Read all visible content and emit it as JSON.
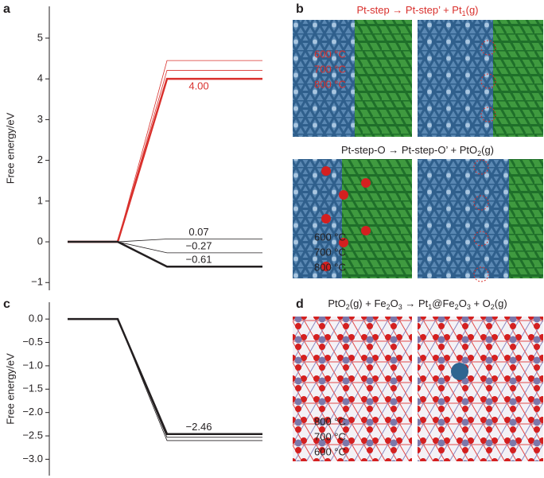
{
  "chart_data": [
    {
      "type": "line",
      "ylabel": "Free energy/eV",
      "categories": [
        null,
        null,
        null,
        null
      ],
      "ylim": [
        -1.19,
        5.78
      ],
      "yticks": [
        {
          "value": -1,
          "label": "−1"
        },
        0,
        1,
        2,
        3,
        4,
        5
      ],
      "series": [
        {
          "name": "600 °C",
          "color": "#d9302c",
          "linewidth": 0.8,
          "values": [
            0,
            0,
            4.45,
            4.45
          ]
        },
        {
          "name": "700 °C",
          "color": "#d9302c",
          "linewidth": 0.8,
          "values": [
            0,
            0,
            4.21,
            4.21
          ]
        },
        {
          "name": "800 °C",
          "color": "#d9302c",
          "linewidth": 2.5,
          "values": [
            0,
            0,
            4.0,
            4.0
          ],
          "value_labels": [
            null,
            null,
            null,
            "4.00"
          ]
        },
        {
          "name": "600 °C",
          "color": "#231f20",
          "linewidth": 0.8,
          "values": [
            0,
            0,
            0.07,
            0.07
          ],
          "value_labels": [
            null,
            null,
            null,
            "0.07"
          ]
        },
        {
          "name": "700 °C",
          "color": "#231f20",
          "linewidth": 0.8,
          "values": [
            0,
            0,
            -0.27,
            -0.27
          ],
          "value_labels": [
            null,
            null,
            null,
            "−0.27"
          ]
        },
        {
          "name": "800 °C",
          "color": "#231f20",
          "linewidth": 2.5,
          "values": [
            0,
            0,
            -0.61,
            -0.61
          ],
          "value_labels": [
            null,
            null,
            null,
            "−0.61"
          ]
        }
      ]
    },
    {
      "type": "line",
      "ylabel": "Free energy/eV",
      "categories": [
        null,
        null,
        null,
        null
      ],
      "ylim": [
        -3.35,
        0.36
      ],
      "yticks": [
        {
          "value": 0,
          "label": "0.0"
        },
        {
          "value": -0.5,
          "label": "−0.5"
        },
        {
          "value": -1,
          "label": "−1.0"
        },
        {
          "value": -1.5,
          "label": "−1.5"
        },
        {
          "value": -2,
          "label": "−2.0"
        },
        {
          "value": -2.5,
          "label": "−2.5"
        },
        {
          "value": -3,
          "label": "−3.0"
        }
      ],
      "series": [
        {
          "name": "800 °C",
          "color": "#231f20",
          "linewidth": 2.5,
          "values": [
            0,
            0,
            -2.46,
            -2.46
          ],
          "value_labels": [
            null,
            null,
            null,
            "−2.46"
          ]
        },
        {
          "name": "700 °C",
          "color": "#231f20",
          "linewidth": 0.8,
          "values": [
            0,
            0,
            -2.53,
            -2.53
          ]
        },
        {
          "name": "600 °C",
          "color": "#231f20",
          "linewidth": 0.8,
          "values": [
            0,
            0,
            -2.6,
            -2.6
          ]
        }
      ]
    }
  ],
  "panels": [
    {
      "label": "a"
    },
    {
      "label": "b",
      "captions": [
        [
          "Pt-step → Pt-step’ + Pt",
          "1",
          "(g)"
        ],
        [
          "Pt-step-O → Pt-step-O’ + PtO",
          "2",
          "(g)"
        ]
      ]
    },
    {
      "label": "c"
    },
    {
      "label": "d",
      "captions": [
        [
          "PtO",
          "2",
          "(g) + Fe",
          "2",
          "O",
          "3",
          " → Pt",
          "1",
          "@Fe",
          "2",
          "O",
          "3",
          " + O",
          "2",
          "(g)"
        ]
      ]
    }
  ]
}
